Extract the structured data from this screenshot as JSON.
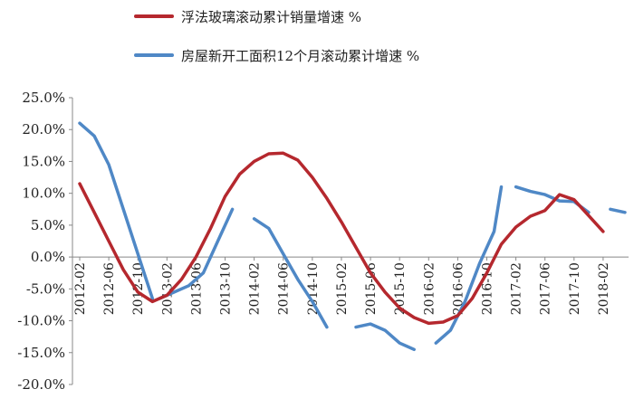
{
  "chart_data": {
    "type": "line",
    "legend_position": "top",
    "grid": false,
    "ylim": [
      -20,
      25
    ],
    "y_ticks": [
      "25.0%",
      "20.0%",
      "15.0%",
      "10.0%",
      "5.0%",
      "0.0%",
      "-5.0%",
      "-10.0%",
      "-15.0%",
      "-20.0%"
    ],
    "y_tick_values": [
      25,
      20,
      15,
      10,
      5,
      0,
      -5,
      -10,
      -15,
      -20
    ],
    "x_ticks": [
      "2012-02",
      "2012-06",
      "2012-10",
      "2013-02",
      "2013-06",
      "2013-10",
      "2014-02",
      "2014-06",
      "2014-10",
      "2015-02",
      "2015-06",
      "2015-10",
      "2016-02",
      "2016-06",
      "2016-10",
      "2017-02",
      "2017-06",
      "2017-10",
      "2018-02"
    ],
    "x_range": [
      "2012-02",
      "2018-05"
    ],
    "series": [
      {
        "name": "浮法玻璃滚动累计销量增速 %",
        "color": "#b5282e",
        "points": [
          [
            "2012-02",
            11.5
          ],
          [
            "2012-04",
            7
          ],
          [
            "2012-06",
            2.5
          ],
          [
            "2012-08",
            -2
          ],
          [
            "2012-10",
            -5.5
          ],
          [
            "2012-12",
            -7
          ],
          [
            "2013-02",
            -6
          ],
          [
            "2013-04",
            -3.5
          ],
          [
            "2013-06",
            0
          ],
          [
            "2013-08",
            4.5
          ],
          [
            "2013-10",
            9.5
          ],
          [
            "2013-12",
            13
          ],
          [
            "2014-02",
            15
          ],
          [
            "2014-04",
            16.2
          ],
          [
            "2014-06",
            16.3
          ],
          [
            "2014-08",
            15.2
          ],
          [
            "2014-10",
            12.5
          ],
          [
            "2014-12",
            9.2
          ],
          [
            "2015-02",
            5.5
          ],
          [
            "2015-04",
            1.5
          ],
          [
            "2015-06",
            -2.5
          ],
          [
            "2015-08",
            -5.5
          ],
          [
            "2015-10",
            -8
          ],
          [
            "2015-12",
            -9.5
          ],
          [
            "2016-02",
            -10.4
          ],
          [
            "2016-04",
            -10.2
          ],
          [
            "2016-06",
            -9.2
          ],
          [
            "2016-08",
            -6.5
          ],
          [
            "2016-10",
            -2.5
          ],
          [
            "2016-12",
            2
          ],
          [
            "2017-02",
            4.7
          ],
          [
            "2017-04",
            6.4
          ],
          [
            "2017-06",
            7.3
          ],
          [
            "2017-08",
            9.8
          ],
          [
            "2017-10",
            9
          ],
          [
            "2017-12",
            6.5
          ],
          [
            "2018-02",
            4
          ]
        ]
      },
      {
        "name": "房屋新开工面积12个月滚动累计增速 %",
        "color": "#4f88c6",
        "segments": [
          [
            [
              "2012-02",
              21
            ],
            [
              "2012-04",
              19
            ],
            [
              "2012-06",
              14.5
            ],
            [
              "2012-08",
              7.5
            ],
            [
              "2012-10",
              0.5
            ],
            [
              "2012-12",
              -6.5
            ]
          ],
          [
            [
              "2013-01",
              -6.5
            ],
            [
              "2013-03",
              -5.5
            ],
            [
              "2013-05",
              -4.5
            ],
            [
              "2013-07",
              -2.5
            ],
            [
              "2013-09",
              2.5
            ],
            [
              "2013-11",
              7.5
            ]
          ],
          [
            [
              "2014-02",
              6
            ],
            [
              "2014-04",
              4.5
            ],
            [
              "2014-06",
              0.5
            ],
            [
              "2014-08",
              -3.5
            ],
            [
              "2014-10",
              -7
            ],
            [
              "2014-12",
              -11
            ]
          ],
          [
            [
              "2015-04",
              -11
            ],
            [
              "2015-06",
              -10.5
            ],
            [
              "2015-08",
              -11.5
            ],
            [
              "2015-10",
              -13.5
            ],
            [
              "2015-12",
              -14.5
            ]
          ],
          [
            [
              "2016-03",
              -13.5
            ],
            [
              "2016-05",
              -11.5
            ],
            [
              "2016-07",
              -7
            ],
            [
              "2016-09",
              -1
            ],
            [
              "2016-11",
              4
            ],
            [
              "2016-12",
              11
            ]
          ],
          [
            [
              "2017-02",
              11
            ],
            [
              "2017-04",
              10.3
            ],
            [
              "2017-06",
              9.8
            ],
            [
              "2017-08",
              8.8
            ],
            [
              "2017-10",
              8.7
            ],
            [
              "2017-12",
              7
            ]
          ],
          [
            [
              "2018-03",
              7.5
            ],
            [
              "2018-05",
              7
            ]
          ]
        ]
      }
    ]
  }
}
